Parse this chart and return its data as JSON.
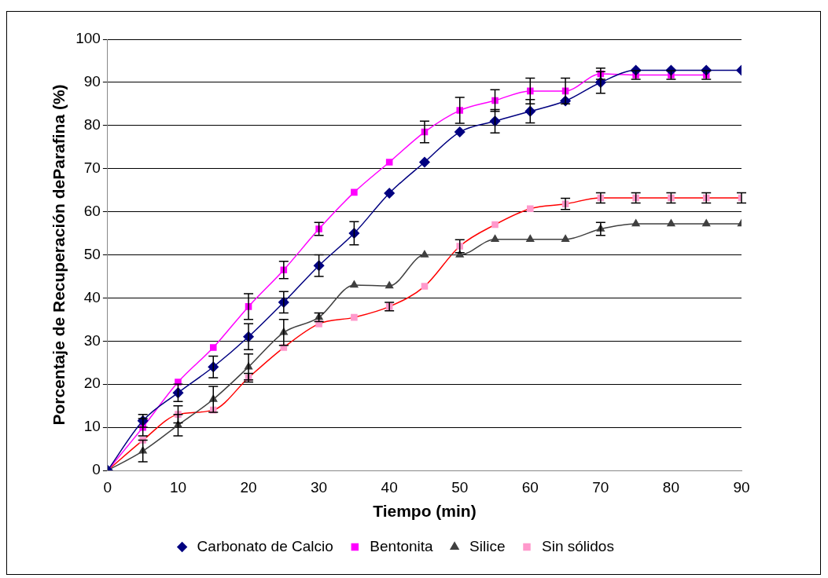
{
  "chart_data": {
    "type": "line",
    "xlabel": "Tiempo (min)",
    "ylabel": "Porcentaje de Recuperación deParafina (%)",
    "x": [
      0,
      5,
      10,
      15,
      20,
      25,
      30,
      35,
      40,
      45,
      50,
      55,
      60,
      65,
      70,
      75,
      80,
      85,
      90
    ],
    "xlim": [
      0,
      90
    ],
    "xticks": [
      0,
      10,
      20,
      30,
      40,
      50,
      60,
      70,
      80,
      90
    ],
    "ylim": [
      0,
      100
    ],
    "yticks": [
      0,
      10,
      20,
      30,
      40,
      50,
      60,
      70,
      80,
      90,
      100
    ],
    "grid": "y",
    "legend": "bottom",
    "line_style": "solid",
    "series": [
      {
        "name": "Carbonato de Calcio",
        "color": "#000080",
        "marker": "diamond",
        "values": [
          0,
          11.5,
          18,
          24,
          31,
          39,
          47.5,
          55,
          64.3,
          71.5,
          78.5,
          81,
          83.3,
          85.7,
          90,
          92.8,
          92.8,
          92.8,
          92.8
        ],
        "errors": [
          null,
          1.5,
          2,
          2.5,
          3,
          2.5,
          2.5,
          2.7,
          null,
          null,
          null,
          2.7,
          2.7,
          null,
          2.5,
          null,
          null,
          null,
          null
        ]
      },
      {
        "name": "Bentonita",
        "color": "#ff00ff",
        "marker": "square",
        "values": [
          0,
          10,
          20.5,
          28.5,
          38,
          46.5,
          56,
          64.5,
          71.5,
          78.5,
          83.5,
          85.8,
          88,
          88,
          92,
          91.7,
          91.7,
          91.7,
          null
        ],
        "errors": [
          null,
          2,
          null,
          null,
          3,
          2,
          1.5,
          null,
          null,
          2.5,
          3,
          2.5,
          3,
          3,
          1.3,
          1,
          1,
          1,
          null
        ]
      },
      {
        "name": "Silice",
        "color": "#404040",
        "marker": "triangle",
        "values": [
          0,
          4.5,
          10.5,
          16.5,
          24,
          32,
          35.5,
          43,
          42.8,
          50,
          50,
          53.6,
          53.6,
          53.6,
          56,
          57.2,
          57.2,
          57.2,
          57.2
        ],
        "errors": [
          null,
          2.5,
          2.5,
          3,
          3,
          3,
          1,
          null,
          null,
          null,
          null,
          null,
          null,
          null,
          1.5,
          null,
          null,
          null,
          null
        ]
      },
      {
        "name": "Sin sólidos",
        "color": "#ff0000",
        "colors": [
          "#ff99cc",
          "#ff99cc",
          "#ff99cc",
          "#ff99cc",
          "#ff99cc",
          "#ff99cc",
          "#ff99cc",
          "#ff99cc",
          "#ff99cc",
          "#ff99cc",
          "#ff99cc",
          "#ff99cc",
          "#ff99cc",
          "#ff99cc",
          "#ff99cc",
          "#ff99cc",
          "#ff99cc",
          "#ff99cc",
          "#ff99cc"
        ],
        "marker": "square",
        "values": [
          0,
          7,
          13,
          14,
          21.5,
          28.5,
          34,
          35.5,
          38,
          42.7,
          52,
          57,
          60.7,
          61.8,
          63.2,
          63.2,
          63.2,
          63.2,
          63.2
        ],
        "errors": [
          null,
          null,
          2,
          null,
          1,
          null,
          null,
          null,
          1,
          null,
          1.5,
          null,
          null,
          1.3,
          1.2,
          1.2,
          1.2,
          1.2,
          1.2
        ]
      }
    ]
  }
}
